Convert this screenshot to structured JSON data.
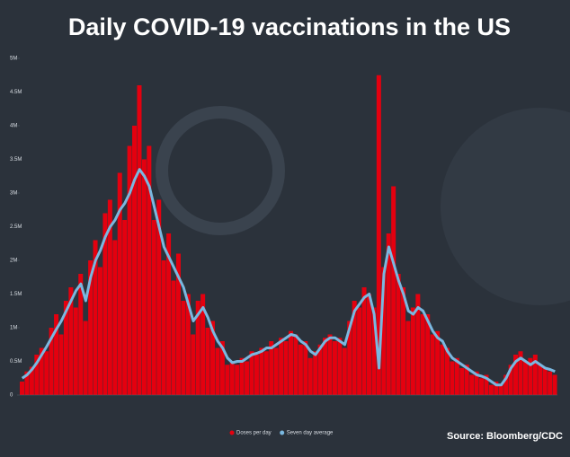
{
  "chart_data": {
    "type": "bar_line",
    "title": "Daily COVID-19 vaccinations in the US",
    "source": "Source: Bloomberg/CDC",
    "ylim": [
      0,
      5000000
    ],
    "yticks": [
      0,
      {
        "value": 500000,
        "label": "0.5M"
      },
      {
        "value": 1000000,
        "label": "1M"
      },
      {
        "value": 1500000,
        "label": "1.5M"
      },
      {
        "value": 2000000,
        "label": "2M"
      },
      {
        "value": 2500000,
        "label": "2.5M"
      },
      {
        "value": 3000000,
        "label": "3M"
      },
      {
        "value": 3500000,
        "label": "3.5M"
      },
      {
        "value": 4000000,
        "label": "4M"
      },
      {
        "value": 4500000,
        "label": "4.5M"
      },
      {
        "value": 5000000,
        "label": "5M"
      }
    ],
    "series": [
      {
        "name": "Doses per day",
        "color": "#e4000f",
        "type": "bar",
        "values": [
          200000,
          350000,
          420000,
          600000,
          700000,
          650000,
          1000000,
          1200000,
          900000,
          1400000,
          1600000,
          1300000,
          1800000,
          1100000,
          2000000,
          2300000,
          1900000,
          2700000,
          2900000,
          2300000,
          3300000,
          2600000,
          3700000,
          4000000,
          4600000,
          3500000,
          3700000,
          2600000,
          2900000,
          2000000,
          2400000,
          1700000,
          2100000,
          1400000,
          1500000,
          900000,
          1400000,
          1500000,
          1000000,
          1100000,
          700000,
          800000,
          450000,
          500000,
          450000,
          550000,
          500000,
          650000,
          600000,
          700000,
          650000,
          800000,
          700000,
          850000,
          800000,
          950000,
          900000,
          750000,
          800000,
          550000,
          650000,
          750000,
          850000,
          900000,
          800000,
          850000,
          700000,
          1100000,
          1400000,
          1300000,
          1600000,
          1500000,
          1300000,
          4750000,
          1900000,
          2400000,
          3100000,
          1800000,
          1600000,
          1100000,
          1300000,
          1500000,
          1200000,
          1200000,
          900000,
          950000,
          750000,
          700000,
          500000,
          550000,
          400000,
          450000,
          300000,
          350000,
          250000,
          300000,
          150000,
          200000,
          150000,
          300000,
          450000,
          600000,
          650000,
          500000,
          550000,
          600000,
          450000,
          400000,
          350000,
          300000
        ]
      },
      {
        "name": "Seven day average",
        "color": "#7ab8e0",
        "type": "line",
        "values": [
          250000,
          300000,
          380000,
          480000,
          600000,
          720000,
          850000,
          980000,
          1100000,
          1250000,
          1400000,
          1550000,
          1650000,
          1400000,
          1750000,
          2000000,
          2150000,
          2350000,
          2500000,
          2600000,
          2750000,
          2850000,
          3000000,
          3200000,
          3350000,
          3250000,
          3100000,
          2800000,
          2500000,
          2200000,
          2050000,
          1900000,
          1750000,
          1600000,
          1350000,
          1100000,
          1200000,
          1300000,
          1150000,
          950000,
          800000,
          700000,
          550000,
          480000,
          500000,
          500000,
          550000,
          600000,
          620000,
          650000,
          700000,
          700000,
          750000,
          800000,
          850000,
          900000,
          880000,
          800000,
          750000,
          650000,
          600000,
          700000,
          800000,
          850000,
          850000,
          800000,
          750000,
          1000000,
          1250000,
          1350000,
          1450000,
          1500000,
          1200000,
          400000,
          1800000,
          2200000,
          1950000,
          1700000,
          1500000,
          1250000,
          1200000,
          1300000,
          1250000,
          1100000,
          950000,
          850000,
          800000,
          650000,
          550000,
          500000,
          450000,
          400000,
          350000,
          300000,
          280000,
          250000,
          200000,
          150000,
          150000,
          250000,
          400000,
          500000,
          550000,
          500000,
          450000,
          500000,
          450000,
          400000,
          380000,
          350000
        ]
      }
    ]
  }
}
